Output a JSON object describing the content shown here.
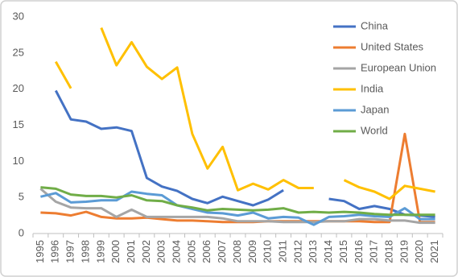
{
  "chart_data": {
    "type": "line",
    "categories": [
      "1995",
      "1996",
      "1997",
      "1998",
      "1999",
      "2000",
      "2001",
      "2002",
      "2003",
      "2004",
      "2005",
      "2006",
      "2007",
      "2008",
      "2009",
      "2010",
      "2011",
      "2012",
      "2013",
      "2014",
      "2015",
      "2016",
      "2017",
      "2018",
      "2019",
      "2020",
      "2021"
    ],
    "ylim": [
      0,
      30
    ],
    "yticks": [
      0,
      5,
      10,
      15,
      20,
      25,
      30
    ],
    "grid": false,
    "legend": "right",
    "series": [
      {
        "name": "China",
        "color": "#4472c4",
        "values": [
          null,
          19.8,
          15.8,
          15.5,
          14.5,
          14.7,
          14.2,
          7.7,
          6.5,
          5.9,
          4.8,
          4.2,
          5.1,
          4.5,
          3.9,
          4.7,
          6.0,
          null,
          null,
          4.8,
          4.5,
          3.4,
          3.8,
          3.4,
          2.6,
          2.5,
          2.3
        ]
      },
      {
        "name": "United States",
        "color": "#ed7d31",
        "values": [
          2.9,
          2.8,
          2.5,
          3.0,
          2.3,
          2.1,
          2.1,
          2.2,
          2.0,
          1.8,
          1.8,
          1.7,
          1.6,
          1.6,
          1.6,
          1.7,
          1.7,
          1.7,
          1.7,
          1.7,
          1.7,
          1.7,
          1.6,
          1.6,
          13.8,
          1.6,
          1.6
        ]
      },
      {
        "name": "European Union",
        "color": "#a5a5a5",
        "values": [
          6.2,
          4.4,
          3.6,
          3.5,
          3.5,
          2.3,
          3.3,
          2.3,
          2.3,
          2.3,
          2.3,
          2.3,
          2.1,
          1.7,
          1.7,
          1.7,
          1.6,
          1.6,
          1.6,
          1.7,
          1.7,
          2.0,
          2.0,
          1.8,
          1.8,
          1.5,
          1.5
        ]
      },
      {
        "name": "India",
        "color": "#ffc000",
        "values": [
          null,
          23.8,
          20.1,
          null,
          28.5,
          23.3,
          26.5,
          23.1,
          21.4,
          23.0,
          13.8,
          9.0,
          12.0,
          6.0,
          6.9,
          6.1,
          7.4,
          6.3,
          6.3,
          null,
          7.4,
          6.4,
          5.8,
          4.8,
          6.6,
          6.2,
          5.8
        ]
      },
      {
        "name": "Japan",
        "color": "#5b9bd5",
        "values": [
          5.1,
          5.6,
          4.3,
          4.4,
          4.6,
          4.6,
          5.8,
          5.5,
          5.3,
          3.9,
          3.4,
          2.9,
          2.8,
          2.5,
          2.9,
          2.1,
          2.3,
          2.2,
          1.2,
          2.3,
          2.4,
          2.6,
          2.4,
          2.3,
          3.5,
          2.0,
          2.0
        ]
      },
      {
        "name": "World",
        "color": "#70ad47",
        "values": [
          6.4,
          6.2,
          5.4,
          5.2,
          5.2,
          5.0,
          5.3,
          4.6,
          4.5,
          3.9,
          3.6,
          3.2,
          3.4,
          3.3,
          3.2,
          3.3,
          3.5,
          2.9,
          3.0,
          2.9,
          3.0,
          2.9,
          2.7,
          2.6,
          2.6,
          2.6,
          2.6
        ]
      }
    ]
  }
}
